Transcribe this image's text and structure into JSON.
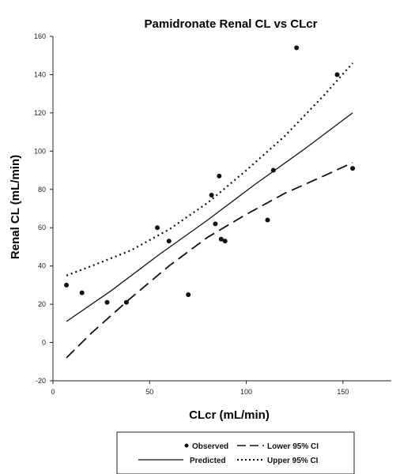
{
  "chart_data": {
    "type": "scatter",
    "title": "Pamidronate Renal CL vs CLcr",
    "xlabel": "CLcr (mL/min)",
    "ylabel": "Renal CL (mL/min)",
    "xlim": [
      0,
      175
    ],
    "ylim": [
      -20,
      160
    ],
    "xticks": [
      0,
      50,
      100,
      150
    ],
    "yticks": [
      -20,
      0,
      20,
      40,
      60,
      80,
      100,
      120,
      140,
      160
    ],
    "grid": false,
    "legend_position": "bottom",
    "series": [
      {
        "name": "Observed",
        "style": "markers",
        "color": "#111111",
        "points": [
          {
            "x": 7,
            "y": 30
          },
          {
            "x": 15,
            "y": 26
          },
          {
            "x": 28,
            "y": 21
          },
          {
            "x": 38,
            "y": 21
          },
          {
            "x": 54,
            "y": 60
          },
          {
            "x": 60,
            "y": 53
          },
          {
            "x": 70,
            "y": 25
          },
          {
            "x": 82,
            "y": 77
          },
          {
            "x": 84,
            "y": 62
          },
          {
            "x": 86,
            "y": 87
          },
          {
            "x": 87,
            "y": 54
          },
          {
            "x": 89,
            "y": 53
          },
          {
            "x": 111,
            "y": 64
          },
          {
            "x": 114,
            "y": 90
          },
          {
            "x": 126,
            "y": 154
          },
          {
            "x": 147,
            "y": 140
          },
          {
            "x": 155,
            "y": 91
          }
        ]
      },
      {
        "name": "Predicted",
        "style": "solid",
        "color": "#111111",
        "points": [
          {
            "x": 7,
            "y": 11
          },
          {
            "x": 30,
            "y": 27
          },
          {
            "x": 55,
            "y": 46
          },
          {
            "x": 80,
            "y": 64
          },
          {
            "x": 105,
            "y": 83
          },
          {
            "x": 130,
            "y": 101
          },
          {
            "x": 155,
            "y": 120
          }
        ]
      },
      {
        "name": "Lower 95% CI",
        "style": "dashed",
        "color": "#111111",
        "points": [
          {
            "x": 7,
            "y": -8
          },
          {
            "x": 20,
            "y": 5
          },
          {
            "x": 40,
            "y": 23
          },
          {
            "x": 60,
            "y": 40
          },
          {
            "x": 80,
            "y": 55
          },
          {
            "x": 100,
            "y": 67
          },
          {
            "x": 120,
            "y": 78
          },
          {
            "x": 140,
            "y": 87
          },
          {
            "x": 155,
            "y": 94
          }
        ]
      },
      {
        "name": "Upper 95% CI",
        "style": "dotted",
        "color": "#111111",
        "points": [
          {
            "x": 7,
            "y": 35
          },
          {
            "x": 20,
            "y": 40
          },
          {
            "x": 40,
            "y": 48
          },
          {
            "x": 60,
            "y": 59
          },
          {
            "x": 80,
            "y": 73
          },
          {
            "x": 100,
            "y": 90
          },
          {
            "x": 120,
            "y": 108
          },
          {
            "x": 140,
            "y": 129
          },
          {
            "x": 155,
            "y": 146
          }
        ]
      }
    ]
  },
  "legend": {
    "observed": "Observed",
    "predicted": "Predicted",
    "lower": "Lower 95% CI",
    "upper": "Upper 95% CI"
  }
}
